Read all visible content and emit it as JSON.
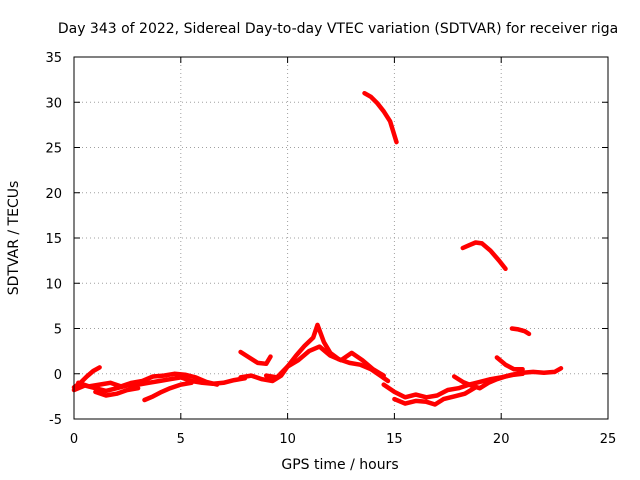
{
  "chart_data": {
    "type": "line",
    "title": "Day 343 of 2022, Sidereal Day-to-day VTEC variation (SDTVAR) for receiver riga",
    "xlabel": "GPS time / hours",
    "ylabel": "SDTVAR / TECUs",
    "xlim": [
      0,
      25
    ],
    "ylim": [
      -5,
      35
    ],
    "xticks": [
      0,
      5,
      10,
      15,
      20,
      25
    ],
    "yticks": [
      -5,
      0,
      5,
      10,
      15,
      20,
      25,
      30,
      35
    ],
    "grid": true,
    "colors": {
      "series": "#ff0000",
      "grid": "#a0a0a0",
      "axis": "#000000"
    },
    "series": [
      {
        "name": "sdtvar",
        "segments": [
          [
            [
              0.0,
              -1.5
            ],
            [
              0.3,
              -1.0
            ],
            [
              0.6,
              -0.3
            ],
            [
              0.9,
              0.3
            ],
            [
              1.2,
              0.7
            ]
          ],
          [
            [
              0.0,
              -1.8
            ],
            [
              0.5,
              -1.3
            ],
            [
              1.0,
              -1.6
            ],
            [
              1.5,
              -1.9
            ],
            [
              2.0,
              -1.6
            ],
            [
              2.5,
              -1.3
            ],
            [
              3.0,
              -1.2
            ],
            [
              3.5,
              -1.0
            ],
            [
              4.0,
              -0.8
            ],
            [
              4.5,
              -0.6
            ],
            [
              5.0,
              -0.4
            ],
            [
              5.5,
              -0.8
            ],
            [
              6.0,
              -1.0
            ],
            [
              6.5,
              -1.1
            ],
            [
              7.0,
              -1.0
            ],
            [
              7.5,
              -0.7
            ],
            [
              8.0,
              -0.5
            ]
          ],
          [
            [
              0.2,
              -1.0
            ],
            [
              0.7,
              -1.4
            ],
            [
              1.2,
              -1.2
            ],
            [
              1.7,
              -1.0
            ],
            [
              2.2,
              -1.4
            ],
            [
              2.7,
              -1.0
            ],
            [
              3.2,
              -0.8
            ],
            [
              3.7,
              -0.3
            ],
            [
              4.2,
              -0.2
            ],
            [
              4.7,
              0.0
            ],
            [
              5.2,
              -0.1
            ],
            [
              5.7,
              -0.4
            ],
            [
              6.2,
              -0.9
            ],
            [
              6.7,
              -1.2
            ]
          ],
          [
            [
              1.0,
              -2.0
            ],
            [
              1.5,
              -2.4
            ],
            [
              2.0,
              -2.2
            ],
            [
              2.5,
              -1.8
            ],
            [
              3.0,
              -1.6
            ]
          ],
          [
            [
              3.3,
              -2.9
            ],
            [
              3.7,
              -2.5
            ],
            [
              4.1,
              -2.0
            ],
            [
              4.5,
              -1.6
            ],
            [
              5.0,
              -1.2
            ],
            [
              5.5,
              -1.0
            ]
          ],
          [
            [
              7.8,
              2.4
            ],
            [
              8.2,
              1.8
            ],
            [
              8.6,
              1.2
            ],
            [
              9.0,
              1.1
            ],
            [
              9.2,
              1.9
            ]
          ],
          [
            [
              7.8,
              -0.4
            ],
            [
              8.3,
              -0.2
            ],
            [
              8.8,
              -0.6
            ],
            [
              9.3,
              -0.8
            ],
            [
              9.7,
              -0.2
            ],
            [
              10.0,
              0.8
            ],
            [
              10.4,
              2.0
            ],
            [
              10.8,
              3.1
            ],
            [
              11.2,
              4.0
            ],
            [
              11.4,
              5.4
            ],
            [
              11.7,
              3.5
            ],
            [
              12.0,
              2.3
            ],
            [
              12.4,
              1.6
            ],
            [
              12.9,
              1.2
            ],
            [
              13.4,
              1.0
            ],
            [
              13.9,
              0.5
            ],
            [
              14.4,
              -0.3
            ],
            [
              14.7,
              -0.8
            ]
          ],
          [
            [
              9.0,
              -0.2
            ],
            [
              9.5,
              -0.4
            ],
            [
              10.0,
              0.8
            ],
            [
              10.5,
              1.5
            ],
            [
              11.0,
              2.5
            ],
            [
              11.5,
              3.0
            ],
            [
              12.0,
              2.0
            ],
            [
              12.5,
              1.5
            ],
            [
              13.0,
              2.3
            ],
            [
              13.5,
              1.5
            ],
            [
              14.0,
              0.5
            ],
            [
              14.5,
              -0.2
            ]
          ],
          [
            [
              14.5,
              -1.2
            ],
            [
              15.0,
              -2.0
            ],
            [
              15.5,
              -2.6
            ],
            [
              16.0,
              -2.3
            ],
            [
              16.5,
              -2.6
            ],
            [
              17.0,
              -2.4
            ],
            [
              17.5,
              -1.8
            ],
            [
              18.0,
              -1.6
            ],
            [
              18.5,
              -1.2
            ],
            [
              19.0,
              -0.9
            ],
            [
              19.5,
              -0.6
            ],
            [
              20.0,
              -0.4
            ],
            [
              20.5,
              -0.1
            ],
            [
              21.0,
              0.1
            ],
            [
              21.5,
              0.2
            ],
            [
              22.0,
              0.1
            ],
            [
              22.5,
              0.2
            ],
            [
              22.8,
              0.6
            ]
          ],
          [
            [
              15.0,
              -2.8
            ],
            [
              15.5,
              -3.3
            ],
            [
              16.0,
              -3.0
            ],
            [
              16.5,
              -3.1
            ],
            [
              16.9,
              -3.4
            ],
            [
              17.3,
              -2.8
            ],
            [
              17.8,
              -2.5
            ],
            [
              18.3,
              -2.2
            ],
            [
              18.8,
              -1.5
            ]
          ],
          [
            [
              17.8,
              -0.3
            ],
            [
              18.2,
              -0.9
            ],
            [
              18.6,
              -1.3
            ],
            [
              19.0,
              -1.6
            ],
            [
              19.4,
              -1.0
            ],
            [
              19.8,
              -0.6
            ],
            [
              20.2,
              -0.3
            ],
            [
              20.6,
              -0.1
            ],
            [
              21.0,
              0.0
            ]
          ],
          [
            [
              19.8,
              1.8
            ],
            [
              20.2,
              1.0
            ],
            [
              20.6,
              0.5
            ],
            [
              21.0,
              0.5
            ]
          ],
          [
            [
              13.6,
              31.0
            ],
            [
              13.9,
              30.6
            ],
            [
              14.2,
              29.9
            ],
            [
              14.5,
              29.0
            ],
            [
              14.8,
              27.9
            ],
            [
              15.1,
              25.6
            ]
          ],
          [
            [
              18.2,
              13.9
            ],
            [
              18.5,
              14.2
            ],
            [
              18.8,
              14.5
            ],
            [
              19.1,
              14.4
            ],
            [
              19.5,
              13.6
            ],
            [
              19.9,
              12.5
            ],
            [
              20.2,
              11.6
            ]
          ],
          [
            [
              20.5,
              5.0
            ],
            [
              20.8,
              4.9
            ],
            [
              21.1,
              4.7
            ],
            [
              21.3,
              4.4
            ]
          ]
        ]
      }
    ]
  }
}
